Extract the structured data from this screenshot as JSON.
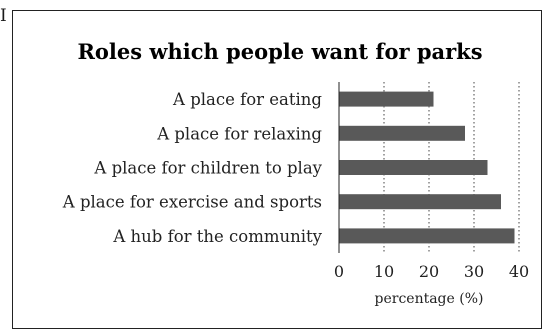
{
  "corner_label": "I",
  "chart_data": {
    "type": "bar",
    "orientation": "horizontal",
    "title": "Roles which people want for parks",
    "categories": [
      "A place for eating",
      "A place for relaxing",
      "A place for children to play",
      "A place for exercise and sports",
      "A hub for the community"
    ],
    "values": [
      21,
      28,
      33,
      36,
      39
    ],
    "xlabel": "percentage (%)",
    "xlim": [
      0,
      40
    ],
    "xticks": [
      "0",
      "10",
      "20",
      "30",
      "40"
    ],
    "grid": "dotted vertical",
    "bar_color": "#595959"
  }
}
